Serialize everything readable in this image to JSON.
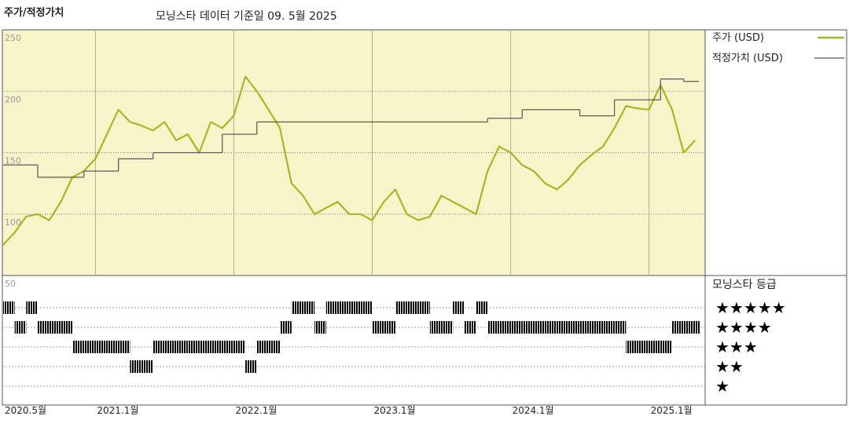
{
  "chart_data": [
    {
      "type": "line",
      "title": "주가/적정가치",
      "subtitle": "모닝스타 데이터 기준일 09. 5월 2025",
      "x": [
        "2020-05",
        "2020-06",
        "2020-07",
        "2020-08",
        "2020-09",
        "2020-10",
        "2020-11",
        "2020-12",
        "2021-01",
        "2021-02",
        "2021-03",
        "2021-04",
        "2021-05",
        "2021-06",
        "2021-07",
        "2021-08",
        "2021-09",
        "2021-10",
        "2021-11",
        "2021-12",
        "2022-01",
        "2022-02",
        "2022-03",
        "2022-04",
        "2022-05",
        "2022-06",
        "2022-07",
        "2022-08",
        "2022-09",
        "2022-10",
        "2022-11",
        "2022-12",
        "2023-01",
        "2023-02",
        "2023-03",
        "2023-04",
        "2023-05",
        "2023-06",
        "2023-07",
        "2023-08",
        "2023-09",
        "2023-10",
        "2023-11",
        "2023-12",
        "2024-01",
        "2024-02",
        "2024-03",
        "2024-04",
        "2024-05",
        "2024-06",
        "2024-07",
        "2024-08",
        "2024-09",
        "2024-10",
        "2024-11",
        "2024-12",
        "2025-01",
        "2025-02",
        "2025-03",
        "2025-04",
        "2025-05"
      ],
      "series": [
        {
          "name": "주가 (USD)",
          "color": "#a9b525",
          "step": false,
          "values": [
            75,
            85,
            98,
            100,
            95,
            110,
            130,
            135,
            145,
            165,
            185,
            175,
            172,
            168,
            175,
            160,
            165,
            150,
            175,
            170,
            180,
            212,
            200,
            185,
            170,
            125,
            115,
            100,
            105,
            110,
            100,
            100,
            95,
            110,
            120,
            100,
            95,
            98,
            115,
            110,
            105,
            100,
            135,
            155,
            150,
            140,
            135,
            125,
            120,
            128,
            140,
            148,
            155,
            170,
            188,
            186,
            185,
            205,
            185,
            150,
            160
          ]
        },
        {
          "name": "적정가치 (USD)",
          "color": "#555555",
          "step": true,
          "values": [
            140,
            140,
            140,
            130,
            130,
            130,
            130,
            135,
            135,
            135,
            145,
            145,
            145,
            150,
            150,
            150,
            150,
            150,
            150,
            165,
            165,
            165,
            175,
            175,
            175,
            175,
            175,
            175,
            175,
            175,
            175,
            175,
            175,
            175,
            175,
            175,
            175,
            175,
            175,
            175,
            175,
            175,
            178,
            178,
            178,
            185,
            185,
            185,
            185,
            185,
            180,
            180,
            180,
            193,
            193,
            193,
            193,
            210,
            210,
            208,
            208
          ]
        }
      ],
      "xlim": [
        "2020-05",
        "2025-06"
      ],
      "xticks": [
        {
          "value": "2020-05",
          "label": "2020.5월"
        },
        {
          "value": "2021-01",
          "label": "2021.1월"
        },
        {
          "value": "2022-01",
          "label": "2022.1월"
        },
        {
          "value": "2023-01",
          "label": "2023.1월"
        },
        {
          "value": "2024-01",
          "label": "2024.1월"
        },
        {
          "value": "2025-01",
          "label": "2025.1월"
        }
      ],
      "ylim": [
        50,
        250
      ],
      "yticks": [
        50,
        100,
        150,
        200,
        250
      ],
      "grid": true,
      "background": "#f8f4c9"
    },
    {
      "type": "rating",
      "title": "모닝스타 등급",
      "x": [
        "2020-05",
        "2020-06",
        "2020-07",
        "2020-08",
        "2020-09",
        "2020-10",
        "2020-11",
        "2020-12",
        "2021-01",
        "2021-02",
        "2021-03",
        "2021-04",
        "2021-05",
        "2021-06",
        "2021-07",
        "2021-08",
        "2021-09",
        "2021-10",
        "2021-11",
        "2021-12",
        "2022-01",
        "2022-02",
        "2022-03",
        "2022-04",
        "2022-05",
        "2022-06",
        "2022-07",
        "2022-08",
        "2022-09",
        "2022-10",
        "2022-11",
        "2022-12",
        "2023-01",
        "2023-02",
        "2023-03",
        "2023-04",
        "2023-05",
        "2023-06",
        "2023-07",
        "2023-08",
        "2023-09",
        "2023-10",
        "2023-11",
        "2023-12",
        "2024-01",
        "2024-02",
        "2024-03",
        "2024-04",
        "2024-05",
        "2024-06",
        "2024-07",
        "2024-08",
        "2024-09",
        "2024-10",
        "2024-11",
        "2024-12",
        "2025-01",
        "2025-02",
        "2025-03",
        "2025-04",
        "2025-05"
      ],
      "values": [
        5,
        4,
        5,
        4,
        4,
        4,
        3,
        3,
        3,
        3,
        3,
        2,
        2,
        3,
        3,
        3,
        3,
        3,
        3,
        3,
        3,
        2,
        3,
        3,
        4,
        5,
        5,
        4,
        5,
        5,
        5,
        5,
        4,
        4,
        5,
        5,
        5,
        4,
        4,
        5,
        4,
        5,
        4,
        4,
        4,
        4,
        4,
        4,
        4,
        4,
        4,
        4,
        4,
        4,
        3,
        3,
        3,
        3,
        4,
        4,
        4
      ],
      "levels": [
        5,
        4,
        3,
        2,
        1
      ],
      "level_labels": [
        "★★★★★",
        "★★★★",
        "★★★",
        "★★",
        "★"
      ],
      "colors": {
        "5": "#3f8f78",
        "other": "#333333"
      }
    }
  ]
}
